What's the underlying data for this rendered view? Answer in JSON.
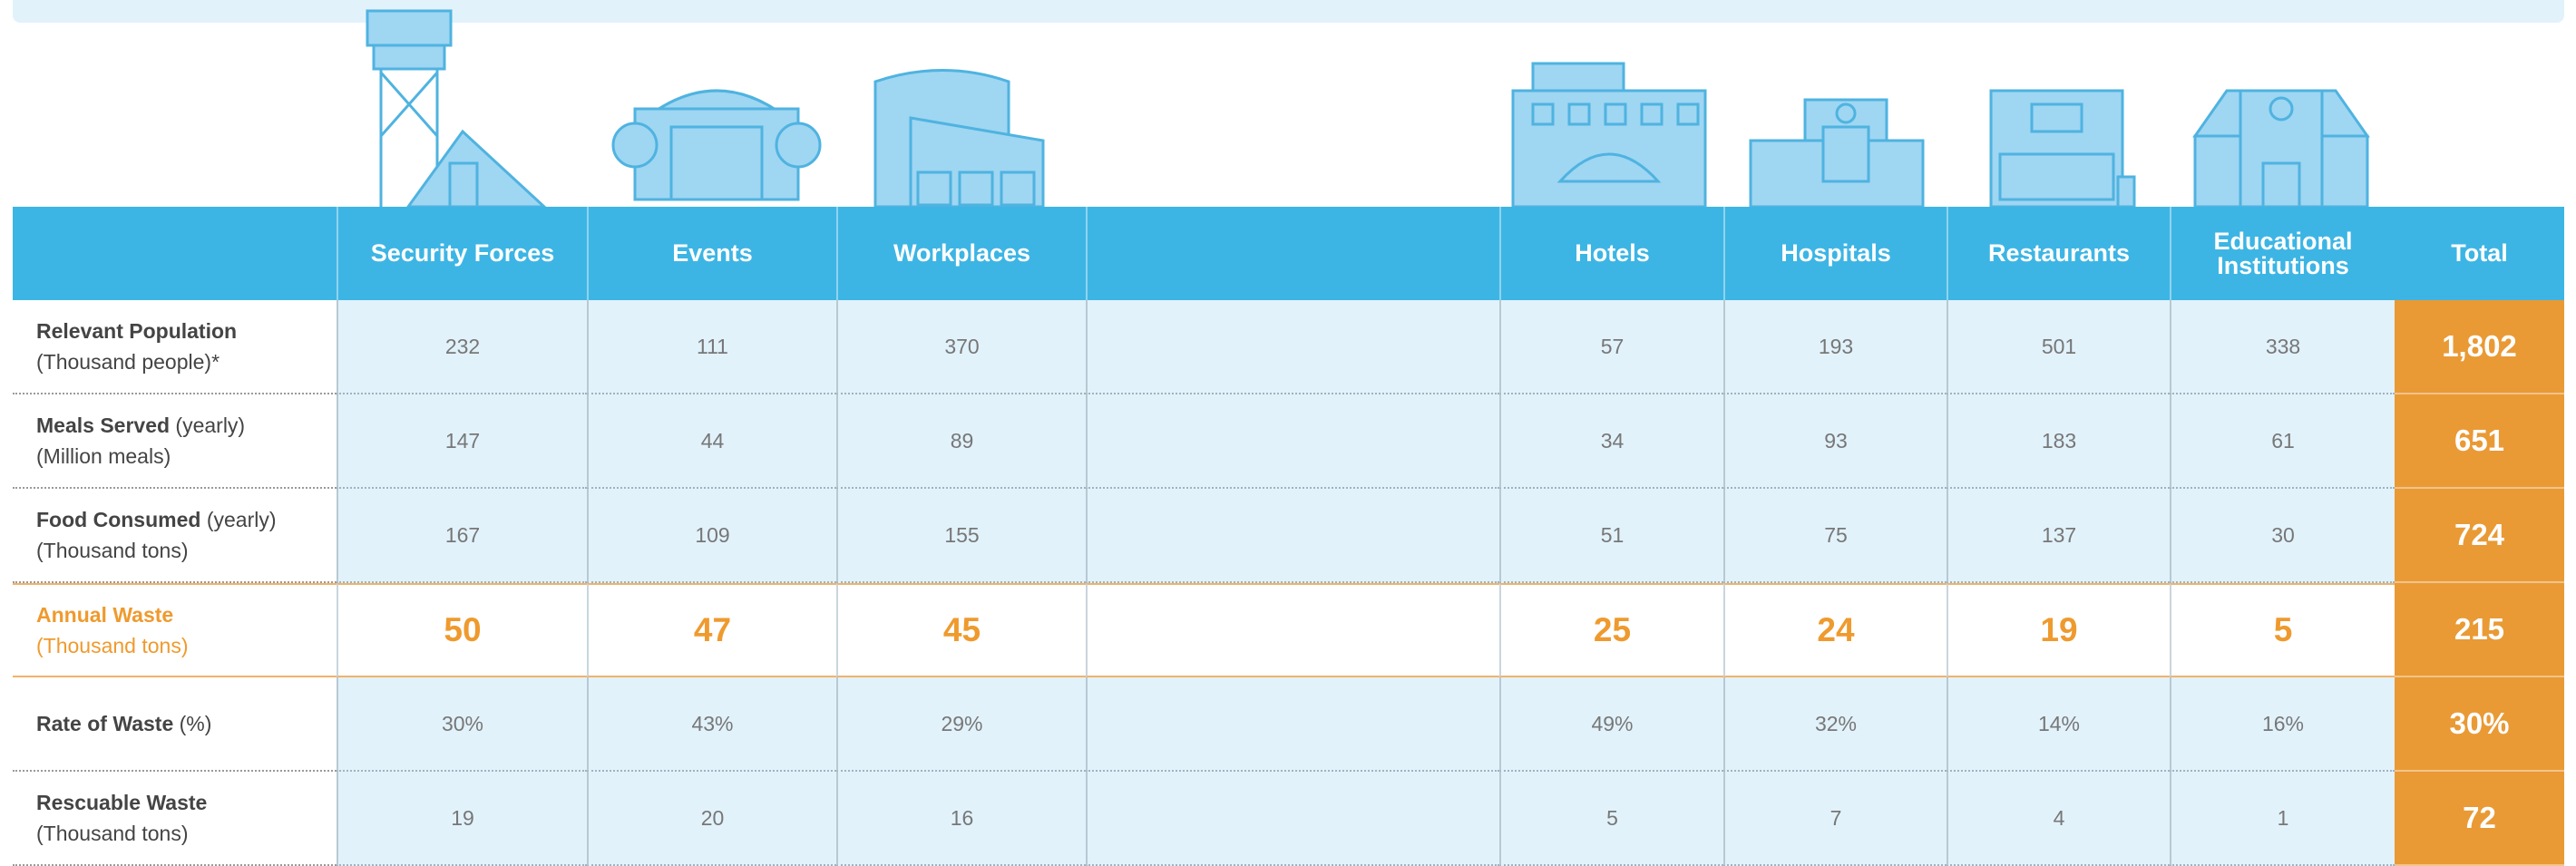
{
  "table": {
    "headers": [
      "Security Forces",
      "Events",
      "Workplaces",
      "",
      "Hotels",
      "Hospitals",
      "Restaurants",
      "Educational Institutions",
      "Total"
    ],
    "rows": [
      {
        "label_bold": "Relevant Population",
        "label_note": "",
        "label_unit": "(Thousand people)*",
        "cells": [
          "232",
          "111",
          "370",
          "",
          "57",
          "193",
          "501",
          "338",
          "1,802"
        ]
      },
      {
        "label_bold": "Meals Served",
        "label_note": "(yearly)",
        "label_unit": "(Million meals)",
        "cells": [
          "147",
          "44",
          "89",
          "",
          "34",
          "93",
          "183",
          "61",
          "651"
        ]
      },
      {
        "label_bold": "Food Consumed",
        "label_note": "(yearly)",
        "label_unit": "(Thousand tons)",
        "cells": [
          "167",
          "109",
          "155",
          "",
          "51",
          "75",
          "137",
          "30",
          "724"
        ]
      },
      {
        "label_bold": "Annual Waste",
        "label_note": "",
        "label_unit": "(Thousand tons)",
        "cells": [
          "50",
          "47",
          "45",
          "",
          "25",
          "24",
          "19",
          "5",
          "215"
        ]
      },
      {
        "label_bold": "Rate of Waste",
        "label_note": "(%)",
        "label_unit": "",
        "cells": [
          "30%",
          "43%",
          "29%",
          "",
          "49%",
          "32%",
          "14%",
          "16%",
          "30%"
        ]
      },
      {
        "label_bold": "Rescuable Waste",
        "label_note": "",
        "label_unit": "(Thousand tons)",
        "cells": [
          "19",
          "20",
          "16",
          "",
          "5",
          "7",
          "4",
          "1",
          "72"
        ]
      }
    ]
  }
}
